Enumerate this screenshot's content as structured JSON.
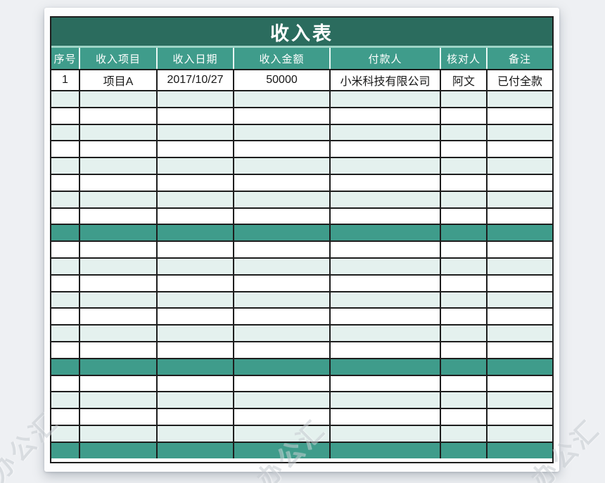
{
  "title": "收入表",
  "table": {
    "columns": [
      "序号",
      "收入项目",
      "收入日期",
      "收入金额",
      "付款人",
      "核对人",
      "备注"
    ],
    "rows": [
      {
        "type": "data",
        "cells": [
          "1",
          "项目A",
          "2017/10/27",
          "50000",
          "小米科技有限公司",
          "阿文",
          "已付全款"
        ]
      },
      {
        "type": "empty",
        "shade": "light"
      },
      {
        "type": "empty",
        "shade": "white"
      },
      {
        "type": "empty",
        "shade": "light"
      },
      {
        "type": "empty",
        "shade": "white"
      },
      {
        "type": "empty",
        "shade": "light"
      },
      {
        "type": "empty",
        "shade": "white"
      },
      {
        "type": "empty",
        "shade": "light"
      },
      {
        "type": "empty",
        "shade": "white"
      },
      {
        "type": "divider"
      },
      {
        "type": "empty",
        "shade": "white"
      },
      {
        "type": "empty",
        "shade": "light"
      },
      {
        "type": "empty",
        "shade": "white"
      },
      {
        "type": "empty",
        "shade": "light"
      },
      {
        "type": "empty",
        "shade": "white"
      },
      {
        "type": "empty",
        "shade": "light"
      },
      {
        "type": "empty",
        "shade": "white"
      },
      {
        "type": "divider"
      },
      {
        "type": "empty",
        "shade": "white"
      },
      {
        "type": "empty",
        "shade": "light"
      },
      {
        "type": "empty",
        "shade": "white"
      },
      {
        "type": "empty",
        "shade": "light"
      },
      {
        "type": "divider"
      }
    ]
  },
  "watermarks": [
    {
      "text": "办公汇"
    },
    {
      "text": "办公汇"
    },
    {
      "text": "办公汇"
    }
  ],
  "colors": {
    "title_bar": "#2b6c5e",
    "header": "#3f9c8b",
    "divider_row": "#3f9c8b",
    "row_light": "#e4f1ee",
    "row_white": "#ffffff",
    "grid_line": "#1d1d1d",
    "separator_line": "#9ed4c6",
    "page_bg": "#eef0f3",
    "card_bg": "#fdfdfe"
  }
}
